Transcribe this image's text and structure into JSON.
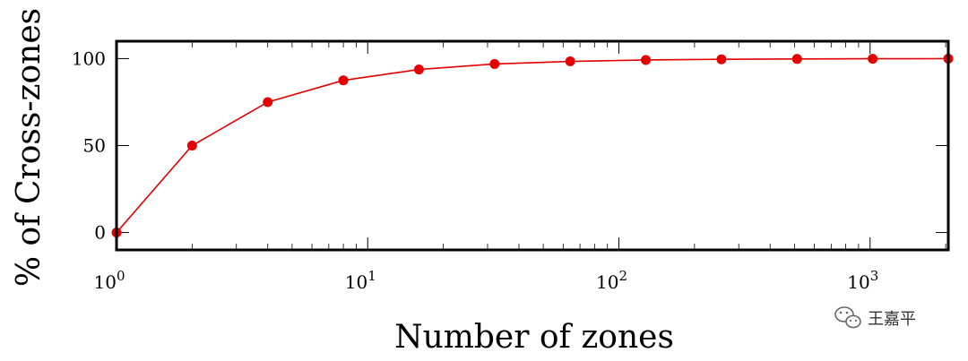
{
  "chart_data": {
    "type": "line",
    "xscale": "log",
    "xlabel": "Number of zones",
    "ylabel": "% of Cross-zones",
    "xlim": [
      1,
      2048
    ],
    "ylim": [
      -10,
      110
    ],
    "grid": false,
    "x_ticks": [
      {
        "value": 1,
        "base": "10",
        "exp": "0"
      },
      {
        "value": 10,
        "base": "10",
        "exp": "1"
      },
      {
        "value": 100,
        "base": "10",
        "exp": "2"
      },
      {
        "value": 1000,
        "base": "10",
        "exp": "3"
      }
    ],
    "y_ticks": [
      {
        "value": 0,
        "label": "0"
      },
      {
        "value": 50,
        "label": "50"
      },
      {
        "value": 100,
        "label": "100"
      }
    ],
    "series": [
      {
        "color": "#e30000",
        "x": [
          1,
          2,
          4,
          8,
          16,
          32,
          64,
          128,
          256,
          512,
          1024,
          2048
        ],
        "y": [
          0,
          50,
          75,
          87.5,
          93.75,
          96.9,
          98.4,
          99.2,
          99.6,
          99.8,
          99.9,
          99.95
        ]
      }
    ]
  },
  "watermark": {
    "icon": "wechat-icon",
    "text": "王嘉平"
  }
}
